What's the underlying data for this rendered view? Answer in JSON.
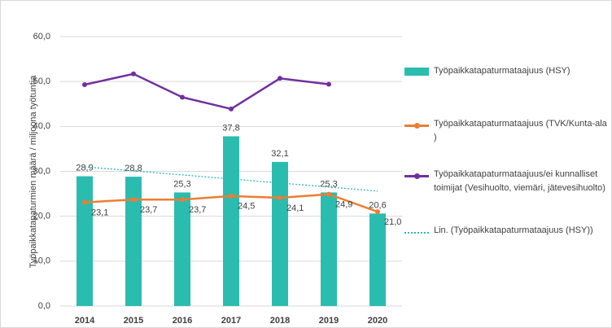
{
  "chart_data": {
    "type": "bar",
    "y_label": "Työpaikkatapaturmien määrä / miljoona työtuntia",
    "categories": [
      "2014",
      "2015",
      "2016",
      "2017",
      "2018",
      "2019",
      "2020"
    ],
    "series": [
      {
        "name": "Työpaikkatapaturmataajuus (HSY)",
        "type": "bar",
        "color": "#2bbcb0",
        "values": [
          28.9,
          28.8,
          25.3,
          37.8,
          32.1,
          25.3,
          20.6
        ],
        "value_labels": [
          "28,9",
          "28,8",
          "25,3",
          "37,8",
          "32,1",
          "25,3",
          "20,6"
        ]
      },
      {
        "name": "Työpaikkatapaturmataajuus (TVK/Kunta-ala )",
        "type": "line",
        "color": "#ed7d31",
        "values": [
          23.1,
          23.7,
          23.7,
          24.5,
          24.1,
          24.9,
          21.0
        ],
        "value_labels": [
          "23,1",
          "23,7",
          "23,7",
          "24,5",
          "24,1",
          "24,9",
          "21,0"
        ]
      },
      {
        "name": "Työpaikkatapaturmataajuus/ei kunnalliset toimijat (Vesihuolto, viemäri, jätevesihuolto)",
        "type": "line",
        "color": "#7030a0",
        "values": [
          49.3,
          51.7,
          46.5,
          43.9,
          50.7,
          49.4,
          null
        ]
      },
      {
        "name": "Lin. (Työpaikkatapaturmataajuus (HSY))",
        "type": "trend",
        "color": "#2bbcb0",
        "values": [
          31.0,
          30.1,
          29.2,
          28.3,
          27.4,
          26.5,
          25.6
        ]
      }
    ],
    "ylim": [
      0,
      60
    ],
    "yticks": [
      {
        "value": 0,
        "label": "0,0"
      },
      {
        "value": 10,
        "label": "10,0"
      },
      {
        "value": 20,
        "label": "20,0"
      },
      {
        "value": 30,
        "label": "30,0"
      },
      {
        "value": 40,
        "label": "40,0"
      },
      {
        "value": 50,
        "label": "50,0"
      },
      {
        "value": 60,
        "label": "60,0"
      }
    ],
    "grid": true
  }
}
